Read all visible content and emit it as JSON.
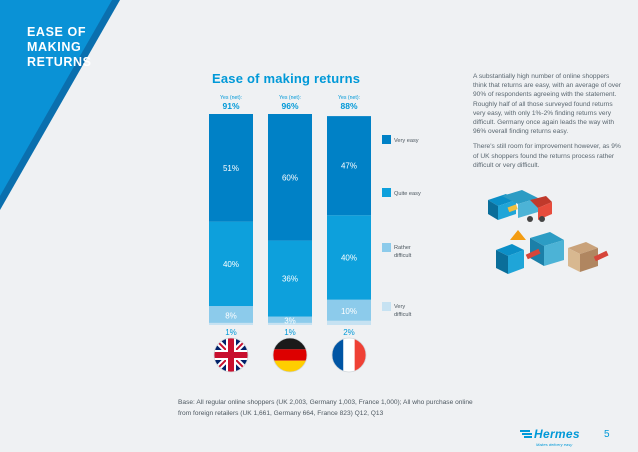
{
  "section_title": "EASE OF MAKING RETURNS",
  "chart_data": {
    "type": "stacked-bar",
    "title": "Ease of making returns",
    "categories": [
      "UK",
      "Germany",
      "France"
    ],
    "net_label": "Yes (net):",
    "net_values": [
      "91%",
      "96%",
      "88%"
    ],
    "series": [
      {
        "name": "Very difficult",
        "color": "#c6e2f2",
        "values": [
          1,
          1,
          2
        ],
        "labels": [
          "1%",
          "1%",
          "2%"
        ]
      },
      {
        "name": "Rather difficult",
        "color": "#8ccbeb",
        "values": [
          8,
          3,
          10
        ],
        "labels": [
          "8%",
          "3%",
          "10%"
        ]
      },
      {
        "name": "Quite easy",
        "color": "#0da0dc",
        "values": [
          40,
          36,
          40
        ],
        "labels": [
          "40%",
          "36%",
          "40%"
        ]
      },
      {
        "name": "Very easy",
        "color": "#0081c6",
        "values": [
          51,
          60,
          47
        ],
        "labels": [
          "51%",
          "60%",
          "47%"
        ]
      }
    ],
    "legend": [
      "Very easy",
      "Quite easy",
      "Rather difficult",
      "Very difficult"
    ],
    "legend_colors": [
      "#0081c6",
      "#0da0dc",
      "#8ccbeb",
      "#c6e2f2"
    ],
    "ylim": [
      0,
      100
    ]
  },
  "description": [
    "A substantially high number of online shoppers think that returns are easy, with an average of over 90% of respondents agreeing with the statement. Roughly half of all those surveyed found returns very easy, with only 1%-2% finding returns very difficult. Germany once again leads the way with 96% overall finding returns easy.",
    "There's still room for improvement however, as 9% of UK shoppers found the returns process rather difficult or very difficult."
  ],
  "base_note": "Base: All regular online shoppers (UK 2,003, Germany 1,003, France 1,000); All who purchase online from foreign retailers (UK 1,661, Germany 664, France 823) Q12, Q13",
  "logo": {
    "name": "Hermes",
    "tagline": "Makes delivery easy"
  },
  "page_number": "5",
  "colors": {
    "accent": "#0099d8",
    "sidebar_blue": "#0a92d6",
    "dark_blue": "#0a6fae"
  }
}
